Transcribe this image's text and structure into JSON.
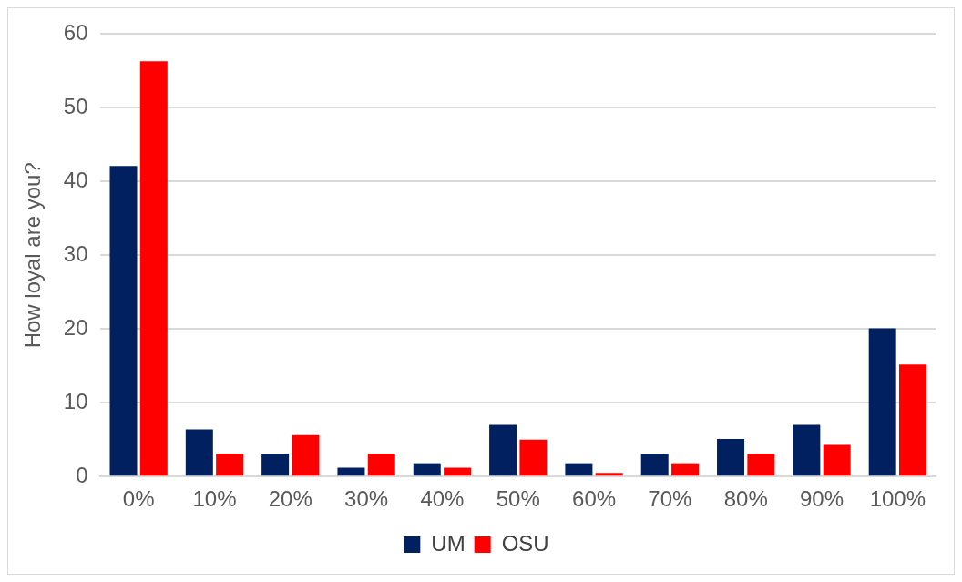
{
  "chart_data": {
    "type": "bar",
    "ylabel": "How loyal are you?",
    "categories": [
      "0%",
      "10%",
      "20%",
      "30%",
      "40%",
      "50%",
      "60%",
      "70%",
      "80%",
      "90%",
      "100%"
    ],
    "series": [
      {
        "name": "UM",
        "color": "#002060",
        "values": [
          42.1,
          6.4,
          3.1,
          1.2,
          1.8,
          7.0,
          1.8,
          3.1,
          5.1,
          7.0,
          20.1
        ]
      },
      {
        "name": "OSU",
        "color": "#ff0000",
        "values": [
          56.3,
          3.1,
          5.6,
          3.1,
          1.2,
          5.0,
          0.5,
          1.8,
          3.1,
          4.3,
          15.2
        ]
      }
    ],
    "ylim": [
      0,
      60
    ],
    "yticks": [
      0,
      10,
      20,
      30,
      40,
      50,
      60
    ],
    "grid": "y",
    "legend": "bottom"
  }
}
